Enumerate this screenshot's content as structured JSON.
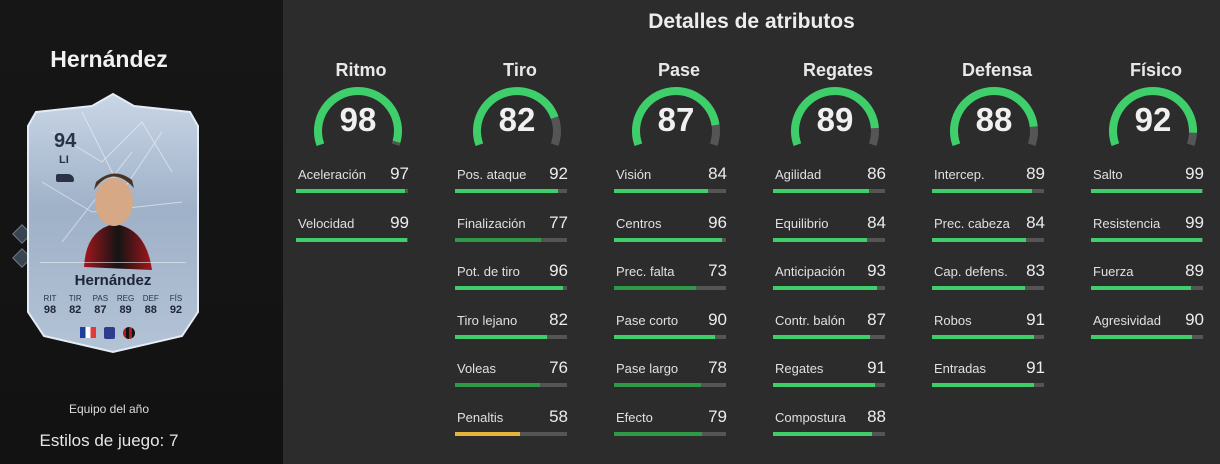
{
  "player": {
    "name": "Hernández",
    "card_type": "Equipo del año",
    "playstyles": "Estilos de juego: 7"
  },
  "card": {
    "rating": "94",
    "position": "LI",
    "name": "Hernández",
    "stats": [
      {
        "label": "RIT",
        "value": "98"
      },
      {
        "label": "TIR",
        "value": "82"
      },
      {
        "label": "PAS",
        "value": "87"
      },
      {
        "label": "REG",
        "value": "89"
      },
      {
        "label": "DEF",
        "value": "88"
      },
      {
        "label": "FÍS",
        "value": "92"
      }
    ]
  },
  "details_title": "Detalles de atributos",
  "colors": {
    "high": "#3ecf6a",
    "mid": "#2e9a48",
    "low": "#e6b43a",
    "track": "#555555"
  },
  "categories": [
    {
      "name": "Ritmo",
      "value": 98,
      "attributes": [
        {
          "name": "Aceleración",
          "value": 97
        },
        {
          "name": "Velocidad",
          "value": 99
        }
      ]
    },
    {
      "name": "Tiro",
      "value": 82,
      "attributes": [
        {
          "name": "Pos. ataque",
          "value": 92
        },
        {
          "name": "Finalización",
          "value": 77
        },
        {
          "name": "Pot. de tiro",
          "value": 96
        },
        {
          "name": "Tiro lejano",
          "value": 82
        },
        {
          "name": "Voleas",
          "value": 76
        },
        {
          "name": "Penaltis",
          "value": 58
        }
      ]
    },
    {
      "name": "Pase",
      "value": 87,
      "attributes": [
        {
          "name": "Visión",
          "value": 84
        },
        {
          "name": "Centros",
          "value": 96
        },
        {
          "name": "Prec. falta",
          "value": 73
        },
        {
          "name": "Pase corto",
          "value": 90
        },
        {
          "name": "Pase largo",
          "value": 78
        },
        {
          "name": "Efecto",
          "value": 79
        }
      ]
    },
    {
      "name": "Regates",
      "value": 89,
      "attributes": [
        {
          "name": "Agilidad",
          "value": 86
        },
        {
          "name": "Equilibrio",
          "value": 84
        },
        {
          "name": "Anticipación",
          "value": 93
        },
        {
          "name": "Contr. balón",
          "value": 87
        },
        {
          "name": "Regates",
          "value": 91
        },
        {
          "name": "Compostura",
          "value": 88
        }
      ]
    },
    {
      "name": "Defensa",
      "value": 88,
      "attributes": [
        {
          "name": "Intercep.",
          "value": 89
        },
        {
          "name": "Prec. cabeza",
          "value": 84
        },
        {
          "name": "Cap. defens.",
          "value": 83
        },
        {
          "name": "Robos",
          "value": 91
        },
        {
          "name": "Entradas",
          "value": 91
        }
      ]
    },
    {
      "name": "Físico",
      "value": 92,
      "attributes": [
        {
          "name": "Salto",
          "value": 99
        },
        {
          "name": "Resistencia",
          "value": 99
        },
        {
          "name": "Fuerza",
          "value": 89
        },
        {
          "name": "Agresividad",
          "value": 90
        }
      ]
    }
  ]
}
